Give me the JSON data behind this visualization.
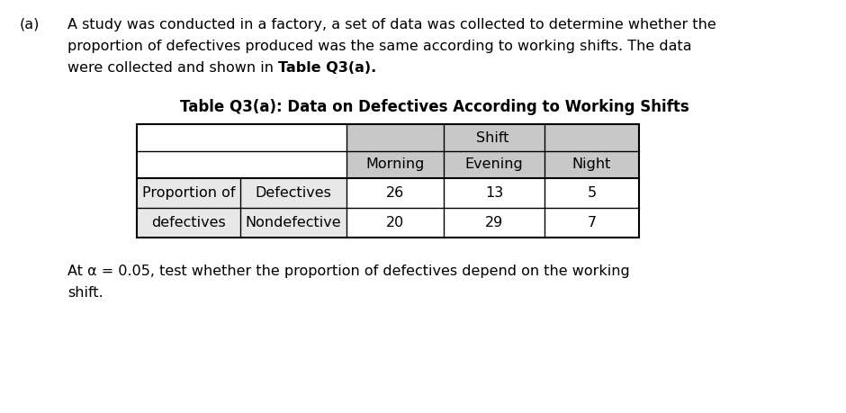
{
  "part_label": "(a)",
  "para_line1": "A study was conducted in a factory, a set of data was collected to determine whether the",
  "para_line2": "proportion of defectives produced was the same according to working shifts. The data",
  "para_line3_normal": "were collected and shown in ",
  "para_line3_bold": "Table Q3(a).",
  "table_title": "Table Q3(a): Data on Defectives According to Working Shifts",
  "header_shift": "Shift",
  "header_row2": [
    "Morning",
    "Evening",
    "Night"
  ],
  "row_labels_col1": [
    "Proportion of",
    "defectives"
  ],
  "row_labels_col2": [
    "Defectives",
    "Nondefective"
  ],
  "data_values": [
    [
      26,
      13,
      5
    ],
    [
      20,
      29,
      7
    ]
  ],
  "footer_line1": "At α = 0.05, test whether the proportion of defectives depend on the working",
  "footer_line2": "shift.",
  "bg_color": "#ffffff",
  "header_bg": "#c8c8c8",
  "data_row_bg": "#e8e8e8",
  "border_color": "#000000",
  "fs_body": 11.5,
  "fs_table": 11.5,
  "fs_title": 12
}
